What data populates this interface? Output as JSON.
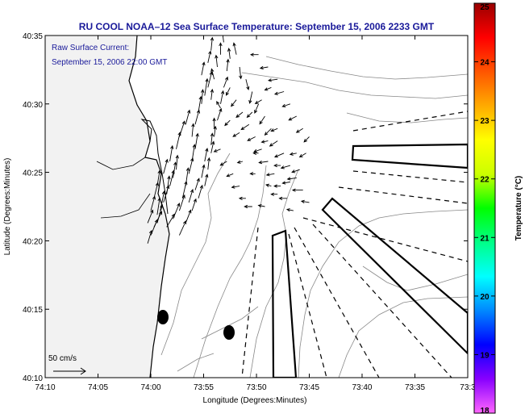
{
  "chart_data": {
    "type": "vector-field-map",
    "title": "RU COOL  NOAA–12  Sea Surface Temperature:  September 15, 2006 2233 GMT",
    "annotation": {
      "line1": "Raw Surface Current:",
      "line2": "September 15, 2006 22:00 GMT"
    },
    "xlabel": "Longitude (Degrees:Minutes)",
    "ylabel": "Latitude (Degrees:Minutes)",
    "xlim": [
      -74.1667,
      -73.5
    ],
    "ylim": [
      40.1667,
      40.5833
    ],
    "x_ticks": [
      {
        "v": -74.1667,
        "label": "74:10"
      },
      {
        "v": -74.0833,
        "label": "74:05"
      },
      {
        "v": -74.0,
        "label": "74:00"
      },
      {
        "v": -73.9167,
        "label": "73:55"
      },
      {
        "v": -73.8333,
        "label": "73:50"
      },
      {
        "v": -73.75,
        "label": "73:45"
      },
      {
        "v": -73.6667,
        "label": "73:40"
      },
      {
        "v": -73.5833,
        "label": "73:35"
      },
      {
        "v": -73.5,
        "label": "73:3"
      }
    ],
    "y_ticks": [
      {
        "v": 40.1667,
        "label": "40:10"
      },
      {
        "v": 40.25,
        "label": "40:15"
      },
      {
        "v": 40.3333,
        "label": "40:20"
      },
      {
        "v": 40.4167,
        "label": "40:25"
      },
      {
        "v": 40.5,
        "label": "40:30"
      },
      {
        "v": 40.5833,
        "label": "40:35"
      }
    ],
    "scale_label": "50 cm/s",
    "colorbar": {
      "label": "Temperature (°C)",
      "range": [
        18,
        25
      ],
      "ticks": [
        18,
        19,
        20,
        21,
        22,
        23,
        24,
        25
      ],
      "colors": [
        "#ff66ff",
        "#8800ff",
        "#0000ff",
        "#0088ff",
        "#00ffff",
        "#00ff88",
        "#00ff00",
        "#ccff00",
        "#ffff00",
        "#ffaa00",
        "#ff5500",
        "#ff0000",
        "#990000"
      ]
    },
    "colors": {
      "title": "#1a1a9a",
      "land": "#f2f2f2",
      "coastline": "#000000",
      "bathymetry": "#888888",
      "vectors": "#000000"
    },
    "vectors": [
      {
        "lon": -74.005,
        "lat": 40.33,
        "u": 3,
        "v": 10
      },
      {
        "lon": -74.0,
        "lat": 40.34,
        "u": 5,
        "v": 12
      },
      {
        "lon": -73.995,
        "lat": 40.35,
        "u": 6,
        "v": 12
      },
      {
        "lon": -73.99,
        "lat": 40.355,
        "u": 4,
        "v": 14
      },
      {
        "lon": -73.99,
        "lat": 40.365,
        "u": 2,
        "v": 13
      },
      {
        "lon": -73.985,
        "lat": 40.37,
        "u": 3,
        "v": 15
      },
      {
        "lon": -73.98,
        "lat": 40.38,
        "u": 4,
        "v": 13
      },
      {
        "lon": -73.975,
        "lat": 40.39,
        "u": 2,
        "v": 14
      },
      {
        "lon": -73.97,
        "lat": 40.4,
        "u": 3,
        "v": 12
      },
      {
        "lon": -73.965,
        "lat": 40.41,
        "u": 2,
        "v": 12
      },
      {
        "lon": -73.96,
        "lat": 40.42,
        "u": 1,
        "v": 11
      },
      {
        "lon": -73.975,
        "lat": 40.35,
        "u": 6,
        "v": 10
      },
      {
        "lon": -73.965,
        "lat": 40.36,
        "u": 5,
        "v": 12
      },
      {
        "lon": -73.955,
        "lat": 40.37,
        "u": 4,
        "v": 12
      },
      {
        "lon": -73.95,
        "lat": 40.385,
        "u": 3,
        "v": 13
      },
      {
        "lon": -73.945,
        "lat": 40.4,
        "u": 2,
        "v": 14
      },
      {
        "lon": -73.94,
        "lat": 40.415,
        "u": 3,
        "v": 12
      },
      {
        "lon": -73.935,
        "lat": 40.43,
        "u": 2,
        "v": 13
      },
      {
        "lon": -73.93,
        "lat": 40.445,
        "u": 2,
        "v": 12
      },
      {
        "lon": -73.935,
        "lat": 40.46,
        "u": 1,
        "v": 10
      },
      {
        "lon": -73.93,
        "lat": 40.475,
        "u": 3,
        "v": 11
      },
      {
        "lon": -73.925,
        "lat": 40.49,
        "u": 2,
        "v": 12
      },
      {
        "lon": -73.915,
        "lat": 40.51,
        "u": 2,
        "v": 13
      },
      {
        "lon": -73.91,
        "lat": 40.52,
        "u": 3,
        "v": 12
      },
      {
        "lon": -73.92,
        "lat": 40.5,
        "u": 1,
        "v": 11
      },
      {
        "lon": -73.955,
        "lat": 40.34,
        "u": 5,
        "v": 11
      },
      {
        "lon": -73.945,
        "lat": 40.355,
        "u": 4,
        "v": 10
      },
      {
        "lon": -73.935,
        "lat": 40.37,
        "u": 3,
        "v": 9
      },
      {
        "lon": -73.925,
        "lat": 40.385,
        "u": 3,
        "v": 10
      },
      {
        "lon": -73.915,
        "lat": 40.4,
        "u": 2,
        "v": 9
      },
      {
        "lon": -73.91,
        "lat": 40.42,
        "u": 1,
        "v": 9
      },
      {
        "lon": -73.905,
        "lat": 40.44,
        "u": 2,
        "v": 9
      },
      {
        "lon": -73.9,
        "lat": 40.46,
        "u": 1,
        "v": 8
      },
      {
        "lon": -73.895,
        "lat": 40.48,
        "u": 3,
        "v": 9
      },
      {
        "lon": -73.89,
        "lat": 40.5,
        "u": 2,
        "v": 10
      },
      {
        "lon": -73.885,
        "lat": 40.52,
        "u": 3,
        "v": 8
      },
      {
        "lon": -73.88,
        "lat": 40.54,
        "u": 1,
        "v": 9
      },
      {
        "lon": -73.875,
        "lat": 40.555,
        "u": -1,
        "v": 8
      },
      {
        "lon": -73.865,
        "lat": 40.56,
        "u": -2,
        "v": 9
      },
      {
        "lon": -73.86,
        "lat": 40.545,
        "u": 1,
        "v": -9
      },
      {
        "lon": -73.85,
        "lat": 40.53,
        "u": 2,
        "v": -8
      },
      {
        "lon": -73.84,
        "lat": 40.515,
        "u": -2,
        "v": -9
      },
      {
        "lon": -73.83,
        "lat": 40.5,
        "u": -3,
        "v": -7
      },
      {
        "lon": -73.82,
        "lat": 40.485,
        "u": -4,
        "v": -6
      },
      {
        "lon": -73.81,
        "lat": 40.47,
        "u": -5,
        "v": -5
      },
      {
        "lon": -73.8,
        "lat": 40.455,
        "u": -6,
        "v": -4
      },
      {
        "lon": -73.79,
        "lat": 40.44,
        "u": -7,
        "v": -3
      },
      {
        "lon": -73.78,
        "lat": 40.425,
        "u": -7,
        "v": -2
      },
      {
        "lon": -73.77,
        "lat": 40.41,
        "u": -7,
        "v": -1
      },
      {
        "lon": -73.76,
        "lat": 40.395,
        "u": -8,
        "v": 0
      },
      {
        "lon": -73.75,
        "lat": 40.38,
        "u": -6,
        "v": 1
      },
      {
        "lon": -73.875,
        "lat": 40.52,
        "u": -3,
        "v": -6
      },
      {
        "lon": -73.865,
        "lat": 40.505,
        "u": -4,
        "v": -5
      },
      {
        "lon": -73.855,
        "lat": 40.49,
        "u": -5,
        "v": -4
      },
      {
        "lon": -73.845,
        "lat": 40.475,
        "u": -6,
        "v": -4
      },
      {
        "lon": -73.835,
        "lat": 40.46,
        "u": -6,
        "v": -3
      },
      {
        "lon": -73.825,
        "lat": 40.445,
        "u": -6,
        "v": -2
      },
      {
        "lon": -73.815,
        "lat": 40.43,
        "u": -7,
        "v": -1
      },
      {
        "lon": -73.805,
        "lat": 40.415,
        "u": -6,
        "v": -1
      },
      {
        "lon": -73.795,
        "lat": 40.4,
        "u": -5,
        "v": 0
      },
      {
        "lon": -73.785,
        "lat": 40.385,
        "u": -6,
        "v": 0
      },
      {
        "lon": -73.775,
        "lat": 40.37,
        "u": -5,
        "v": 1
      },
      {
        "lon": -73.89,
        "lat": 40.445,
        "u": -5,
        "v": -2
      },
      {
        "lon": -73.88,
        "lat": 40.43,
        "u": -5,
        "v": -3
      },
      {
        "lon": -73.87,
        "lat": 40.415,
        "u": -5,
        "v": -2
      },
      {
        "lon": -73.86,
        "lat": 40.4,
        "u": -6,
        "v": -1
      },
      {
        "lon": -73.85,
        "lat": 40.385,
        "u": -5,
        "v": 0
      },
      {
        "lon": -73.84,
        "lat": 40.375,
        "u": -6,
        "v": 0
      },
      {
        "lon": -73.82,
        "lat": 40.375,
        "u": -5,
        "v": 1
      },
      {
        "lon": -73.8,
        "lat": 40.39,
        "u": -5,
        "v": 0
      },
      {
        "lon": -73.78,
        "lat": 40.405,
        "u": -6,
        "v": -1
      },
      {
        "lon": -73.765,
        "lat": 40.42,
        "u": -6,
        "v": -2
      },
      {
        "lon": -73.755,
        "lat": 40.44,
        "u": -5,
        "v": -3
      },
      {
        "lon": -73.75,
        "lat": 40.46,
        "u": -4,
        "v": -4
      },
      {
        "lon": -73.76,
        "lat": 40.47,
        "u": -5,
        "v": -3
      },
      {
        "lon": -73.77,
        "lat": 40.485,
        "u": -6,
        "v": -3
      },
      {
        "lon": -73.78,
        "lat": 40.5,
        "u": -6,
        "v": -2
      },
      {
        "lon": -73.79,
        "lat": 40.515,
        "u": -7,
        "v": -2
      },
      {
        "lon": -73.8,
        "lat": 40.53,
        "u": -7,
        "v": -1
      },
      {
        "lon": -73.815,
        "lat": 40.545,
        "u": -6,
        "v": -1
      },
      {
        "lon": -73.83,
        "lat": 40.56,
        "u": -6,
        "v": 0
      },
      {
        "lon": -73.9,
        "lat": 40.53,
        "u": -2,
        "v": 8
      },
      {
        "lon": -73.895,
        "lat": 40.545,
        "u": -1,
        "v": 9
      },
      {
        "lon": -73.89,
        "lat": 40.56,
        "u": 0,
        "v": 9
      },
      {
        "lon": -73.885,
        "lat": 40.575,
        "u": -1,
        "v": 8
      },
      {
        "lon": -73.905,
        "lat": 40.565,
        "u": 1,
        "v": 10
      },
      {
        "lon": -73.91,
        "lat": 40.55,
        "u": 2,
        "v": 9
      },
      {
        "lon": -73.92,
        "lat": 40.535,
        "u": 2,
        "v": 10
      },
      {
        "lon": -73.945,
        "lat": 40.475,
        "u": 3,
        "v": 11
      },
      {
        "lon": -73.955,
        "lat": 40.46,
        "u": 4,
        "v": 12
      },
      {
        "lon": -73.96,
        "lat": 40.445,
        "u": 3,
        "v": 13
      },
      {
        "lon": -73.97,
        "lat": 40.43,
        "u": 2,
        "v": 12
      },
      {
        "lon": -73.98,
        "lat": 40.415,
        "u": 3,
        "v": 11
      },
      {
        "lon": -73.99,
        "lat": 40.4,
        "u": 2,
        "v": 12
      },
      {
        "lon": -73.995,
        "lat": 40.385,
        "u": 3,
        "v": 12
      },
      {
        "lon": -74.0,
        "lat": 40.37,
        "u": 3,
        "v": 11
      },
      {
        "lon": -74.005,
        "lat": 40.355,
        "u": 4,
        "v": 10
      },
      {
        "lon": -73.83,
        "lat": 40.44,
        "u": -4,
        "v": 0
      },
      {
        "lon": -73.815,
        "lat": 40.455,
        "u": -5,
        "v": -1
      },
      {
        "lon": -73.8,
        "lat": 40.47,
        "u": -5,
        "v": -2
      },
      {
        "lon": -73.77,
        "lat": 40.44,
        "u": -5,
        "v": -1
      },
      {
        "lon": -73.795,
        "lat": 40.425,
        "u": -5,
        "v": 0
      },
      {
        "lon": -73.81,
        "lat": 40.4,
        "u": -4,
        "v": 1
      },
      {
        "lon": -73.835,
        "lat": 40.415,
        "u": -4,
        "v": 0
      },
      {
        "lon": -73.855,
        "lat": 40.43,
        "u": -4,
        "v": -1
      },
      {
        "lon": -73.84,
        "lat": 40.49,
        "u": -4,
        "v": -4
      },
      {
        "lon": -73.825,
        "lat": 40.505,
        "u": -5,
        "v": -3
      },
      {
        "lon": -73.81,
        "lat": 40.52,
        "u": -5,
        "v": -2
      },
      {
        "lon": -73.86,
        "lat": 40.465,
        "u": -5,
        "v": -3
      },
      {
        "lon": -73.875,
        "lat": 40.48,
        "u": -4,
        "v": -4
      },
      {
        "lon": -73.89,
        "lat": 40.495,
        "u": -3,
        "v": 5
      },
      {
        "lon": -73.905,
        "lat": 40.505,
        "u": 1,
        "v": 8
      },
      {
        "lon": -73.9,
        "lat": 40.47,
        "u": 0,
        "v": 8
      },
      {
        "lon": -73.905,
        "lat": 40.45,
        "u": 1,
        "v": 9
      },
      {
        "lon": -73.915,
        "lat": 40.43,
        "u": 2,
        "v": 10
      },
      {
        "lon": -73.92,
        "lat": 40.41,
        "u": 2,
        "v": 10
      },
      {
        "lon": -73.93,
        "lat": 40.395,
        "u": 3,
        "v": 9
      },
      {
        "lon": -73.94,
        "lat": 40.38,
        "u": 3,
        "v": 10
      }
    ]
  }
}
